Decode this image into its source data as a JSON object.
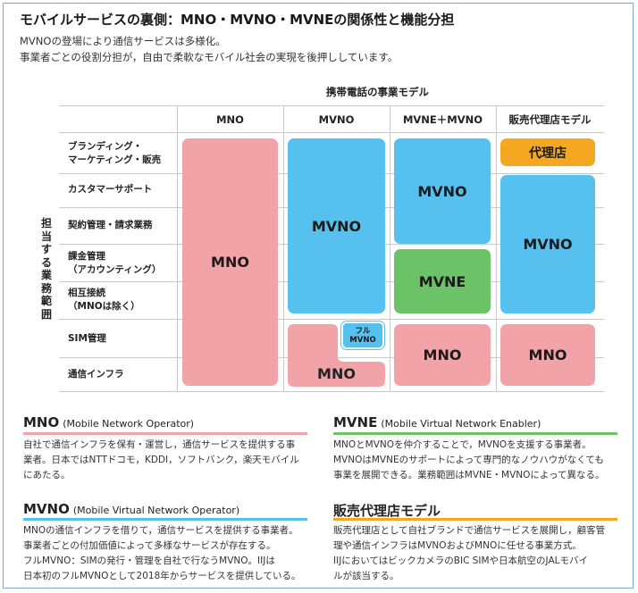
{
  "header": {
    "title": "モバイルサービスの裏側：MNO・MVNO・MVNEの関係性と機能分担",
    "lines": [
      "MVNOの登場により通信サービスは多様化。",
      "事業者ごとの役割分担が，自由で柔軟なモバイル社会の実現を後押ししています。"
    ]
  },
  "diagram": {
    "model_title": "携帯電話の事業モデル",
    "columns": [
      "MNO",
      "MVNO",
      "MVNE＋MVNO",
      "販売代理店モデル"
    ],
    "axis_label": "担当する業務範囲",
    "rows": [
      "ブランディング・\nマーケティング・販売",
      "カスタマーサポート",
      "契約管理・請求業務",
      "課金管理\n（アカウンティング）",
      "相互接続\n（MNOは除く）",
      "SIM管理",
      "通信インフラ"
    ],
    "blocks": {
      "mno_col1": "MNO",
      "mvno_col2": "MVNO",
      "full_mvno": "フル\nMVNO",
      "mno_col2": "MNO",
      "mvno_col3": "MVNO",
      "mvne_col3": "MVNE",
      "mno_col3": "MNO",
      "agency_col4": "代理店",
      "mvno_col4": "MVNO",
      "mno_col4": "MNO"
    },
    "colors": {
      "mno": "#f2a3a8",
      "mvno": "#56c1ee",
      "mvne": "#6cc367",
      "agency": "#f5a721"
    }
  },
  "sections": [
    {
      "title": "MNO",
      "subtitle": "(Mobile Network Operator)",
      "body": "自社で通信インフラを保有・運営し，通信サービスを提供する事\n業者。日本ではNTTドコモ，KDDI，ソフトバンク，楽天モバイル\nにあたる。",
      "accent": "#f2a3a8"
    },
    {
      "title": "MVNE",
      "subtitle": "(Mobile Virtual Network Enabler)",
      "body": "MNOとMVNOを仲介することで，MVNOを支援する事業者。\nMVNOはMVNEのサポートによって専門的なノウハウがなくても\n事業を展開できる。業務範囲はMVNE・MVNOによって異なる。",
      "accent": "#6cc367"
    },
    {
      "title": "MVNO",
      "subtitle": "(Mobile Virtual Network Operator)",
      "body": "MNOの通信インフラを借りて，通信サービスを提供する事業者。\n事業者ごとの付加価値によって多様なサービスが存在する。\nフルMVNO：SIMの発行・管理を自社で行なうMVNO。IIJは\n日本初のフルMVNOとして2018年からサービスを提供している。",
      "accent": "#56c1ee"
    },
    {
      "title": "販売代理店モデル",
      "subtitle": "",
      "body": "販売代理店として自社ブランドで通信サービスを展開し，顧客管\n理や通信インフラはMVNOおよびMNOに任せる事業方式。\nIIJにおいてはビックカメラのBIC SIMや日本航空のJALモバイ\nルが該当する。",
      "accent": "#f5a721"
    }
  ]
}
